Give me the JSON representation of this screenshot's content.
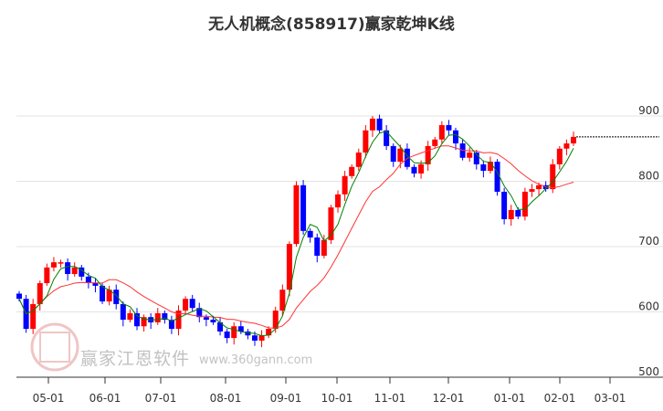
{
  "chart_data": {
    "type": "candlestick",
    "title": "无人机概念(858917)赢家乾坤K线",
    "ylim": [
      500,
      900
    ],
    "yticks": [
      "900",
      "800",
      "700",
      "600",
      "500"
    ],
    "xticks": [
      "05-01",
      "06-01",
      "07-01",
      "08-01",
      "09-01",
      "10-01",
      "11-01",
      "12-01",
      "01-01",
      "02-01",
      "03-01"
    ],
    "grid": true,
    "colors": {
      "up": "#ff0000",
      "down": "#0000ff",
      "ma_short": "#008000",
      "ma_long": "#ff3333",
      "last_line": "#000000"
    },
    "closes": [
      620,
      574,
      612,
      644,
      668,
      676,
      676,
      658,
      668,
      654,
      644,
      640,
      616,
      634,
      612,
      588,
      598,
      578,
      592,
      584,
      598,
      588,
      574,
      602,
      620,
      606,
      592,
      588,
      584,
      570,
      560,
      578,
      570,
      564,
      556,
      564,
      574,
      602,
      634,
      704,
      794,
      724,
      714,
      686,
      710,
      760,
      780,
      808,
      822,
      844,
      878,
      896,
      878,
      854,
      830,
      850,
      822,
      812,
      826,
      854,
      864,
      886,
      878,
      858,
      836,
      844,
      826,
      816,
      830,
      784,
      742,
      756,
      746,
      784,
      788,
      794,
      788,
      826,
      850,
      858,
      868
    ]
  },
  "watermark": {
    "name": "赢家江恩软件",
    "url": "www.360gann.com",
    "seal": "江赢恩家"
  }
}
